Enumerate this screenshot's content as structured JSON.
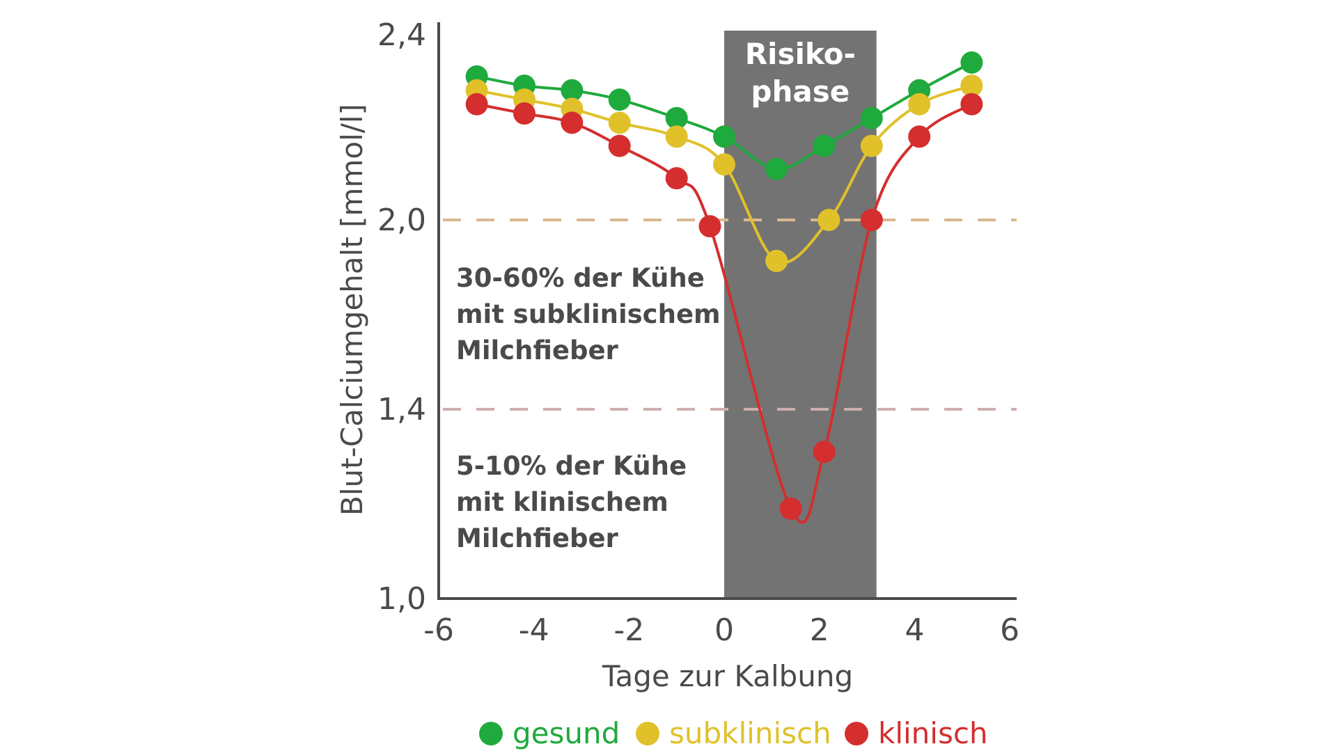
{
  "chart_data": {
    "type": "line",
    "title": "",
    "xlabel": "Tage zur Kalbung",
    "ylabel": "Blut-Calciumgehalt [mmol/l]",
    "xlim": [
      -6,
      6
    ],
    "ylim": [
      1.0,
      2.4
    ],
    "grid": false,
    "x_ticks": [
      "-6",
      "-4",
      "-2",
      "0",
      "2",
      "4",
      "6"
    ],
    "x_tick_values": [
      -6,
      -4,
      -2,
      0,
      2,
      4,
      6
    ],
    "y_ticks": [
      "1,0",
      "1,4",
      "2,0",
      "2,4"
    ],
    "y_tick_values": [
      1.0,
      1.4,
      2.0,
      2.4
    ],
    "risk_zone": {
      "from": 0,
      "to": 3.2,
      "label_lines": [
        "Risiko-",
        "phase"
      ],
      "color": "#737373"
    },
    "reference_lines": [
      {
        "y": 2.0,
        "color": "#d9b88f"
      },
      {
        "y": 1.4,
        "color": "#cfaeae"
      }
    ],
    "annotations": [
      {
        "lines": [
          "30-60% der Kühe",
          "mit subklinischem",
          "Milchfieber"
        ]
      },
      {
        "lines": [
          "5-10% der Kühe",
          "mit klinischem",
          "Milchfieber"
        ]
      }
    ],
    "legend_position": "bottom",
    "series": [
      {
        "name": "gesund",
        "color": "#1faa3d",
        "x": [
          -5.2,
          -4.2,
          -3.2,
          -2.2,
          -1.0,
          0.0,
          1.1,
          2.1,
          3.1,
          4.1,
          5.2
        ],
        "y": [
          2.31,
          2.29,
          2.28,
          2.26,
          2.22,
          2.18,
          2.11,
          2.16,
          2.22,
          2.28,
          2.34
        ]
      },
      {
        "name": "subklinisch",
        "color": "#e0c12a",
        "x": [
          -5.2,
          -4.2,
          -3.2,
          -2.2,
          -1.0,
          0.0,
          1.1,
          2.2,
          3.1,
          4.1,
          5.2
        ],
        "y": [
          2.28,
          2.26,
          2.24,
          2.21,
          2.18,
          2.12,
          1.87,
          2.0,
          2.16,
          2.25,
          2.29
        ]
      },
      {
        "name": "klinisch",
        "color": "#d42e2e",
        "x": [
          -5.2,
          -4.2,
          -3.2,
          -2.2,
          -1.0,
          -0.3,
          1.4,
          2.1,
          3.1,
          4.1,
          5.2
        ],
        "y": [
          2.25,
          2.23,
          2.21,
          2.16,
          2.09,
          1.98,
          1.19,
          1.31,
          2.0,
          2.18,
          2.25
        ]
      }
    ]
  }
}
